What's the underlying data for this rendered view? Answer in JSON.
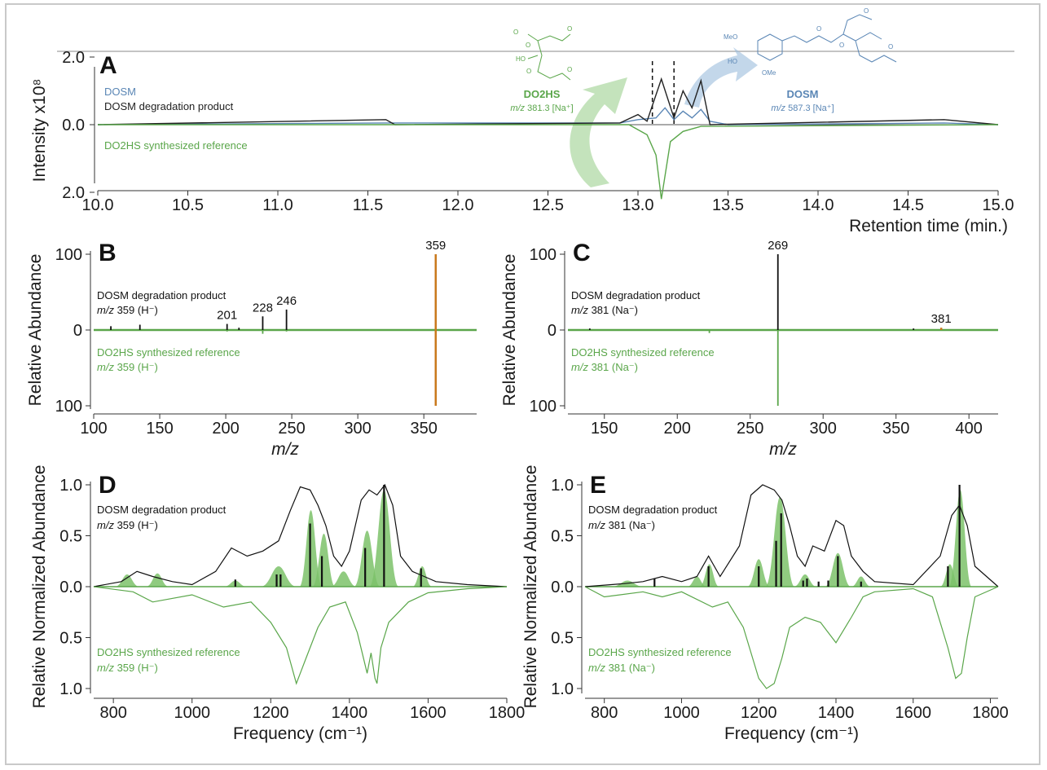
{
  "colors": {
    "dosm": "#5a86b5",
    "product": "#222222",
    "reference": "#5aa64a",
    "reference_fill": "#7cc26a",
    "highlight": "#c9791c"
  },
  "chart_data": [
    {
      "panel": "A",
      "type": "line",
      "xlabel": "Retention time (min.)",
      "ylabel": "Intensity x10⁸",
      "xlim": [
        10.0,
        15.0
      ],
      "ylim": [
        -2.3,
        2.6
      ],
      "xticks": [
        "10.0",
        "10.5",
        "11.0",
        "11.5",
        "12.0",
        "12.5",
        "13.0",
        "13.5",
        "14.0",
        "14.5",
        "15.0"
      ],
      "yticks": [
        "2.0",
        "0.0",
        "2.0"
      ],
      "series": [
        {
          "name": "DOSM",
          "x": [
            10.0,
            11.6,
            12.9,
            13.0,
            13.1,
            13.15,
            13.2,
            13.25,
            13.3,
            13.35,
            13.4,
            13.5,
            14.7,
            15.0
          ],
          "y": [
            0.0,
            0.05,
            0.05,
            0.15,
            0.2,
            0.5,
            0.15,
            0.4,
            0.2,
            0.45,
            0.1,
            0.0,
            0.05,
            0.0
          ]
        },
        {
          "name": "DOSM degradation product",
          "x": [
            10.0,
            11.6,
            11.65,
            12.9,
            13.0,
            13.05,
            13.13,
            13.2,
            13.25,
            13.3,
            13.35,
            13.4,
            14.7,
            15.0
          ],
          "y": [
            0.0,
            0.15,
            0.0,
            0.05,
            0.3,
            0.1,
            1.35,
            0.2,
            1.0,
            0.5,
            1.3,
            0.0,
            0.15,
            0.0
          ]
        },
        {
          "name": "DO2HS synthesized reference",
          "x": [
            10.0,
            12.95,
            13.05,
            13.1,
            13.13,
            13.18,
            13.25,
            13.35,
            15.0
          ],
          "y": [
            0.0,
            0.0,
            -0.3,
            -0.9,
            -2.2,
            -0.5,
            -0.2,
            -0.05,
            0.0
          ]
        }
      ],
      "legend": [
        "DOSM",
        "DOSM degradation product",
        "DO2HS synthesized reference"
      ],
      "annotations": {
        "left_compound": {
          "name": "DO2HS",
          "mz_prefix": "m/z",
          "mz_value": "381.3",
          "adduct": "[Na⁺]"
        },
        "right_compound": {
          "name": "DOSM",
          "mz_prefix": "m/z",
          "mz_value": "587.3",
          "adduct": "[Na⁺]"
        },
        "dashed_lines_x": [
          13.08,
          13.2
        ]
      }
    },
    {
      "panel": "B",
      "type": "bar",
      "xlabel": "m/z",
      "ylabel": "Relative Abundance",
      "xlim": [
        100,
        390
      ],
      "ylim": [
        -100,
        100
      ],
      "xticks": [
        "100",
        "150",
        "200",
        "250",
        "300",
        "350"
      ],
      "yticks": [
        "100",
        "0",
        "100"
      ],
      "upper_label": {
        "text": "DOSM degradation product",
        "mz_prefix": "m/z",
        "mz_value": "359 (H⁻)"
      },
      "lower_label": {
        "text": "DO2HS synthesized reference",
        "mz_prefix": "m/z",
        "mz_value": "359 (H⁻)"
      },
      "upper_peaks": [
        {
          "x": 113,
          "y": 5
        },
        {
          "x": 135,
          "y": 7
        },
        {
          "x": 201,
          "y": 8,
          "label": "201"
        },
        {
          "x": 210,
          "y": 3
        },
        {
          "x": 228,
          "y": 18,
          "label": "228"
        },
        {
          "x": 246,
          "y": 27,
          "label": "246"
        }
      ],
      "lower_peaks": [
        {
          "x": 201,
          "y": -2
        },
        {
          "x": 228,
          "y": -5
        },
        {
          "x": 246,
          "y": -2
        }
      ],
      "precursor": {
        "x": 359,
        "y": 100,
        "label": "359"
      }
    },
    {
      "panel": "C",
      "type": "bar",
      "xlabel": "m/z",
      "ylabel": "Relative Abundance",
      "xlim": [
        125,
        420
      ],
      "ylim": [
        -100,
        100
      ],
      "xticks": [
        "150",
        "200",
        "250",
        "300",
        "350",
        "400"
      ],
      "yticks": [
        "100",
        "0",
        "100"
      ],
      "upper_label": {
        "text": "DOSM degradation product",
        "mz_prefix": "m/z",
        "mz_value": "381 (Na⁻)"
      },
      "lower_label": {
        "text": "DO2HS synthesized reference",
        "mz_prefix": "m/z",
        "mz_value": "381 (Na⁻)"
      },
      "upper_peaks": [
        {
          "x": 140,
          "y": 2
        },
        {
          "x": 269,
          "y": 100,
          "label": "269"
        },
        {
          "x": 362,
          "y": 2
        }
      ],
      "lower_peaks": [
        {
          "x": 222,
          "y": -4
        },
        {
          "x": 269,
          "y": -100
        }
      ],
      "precursor": {
        "x": 381,
        "y": 3,
        "label": "381"
      }
    },
    {
      "panel": "D",
      "type": "line",
      "xlabel": "Frequency (cm⁻¹)",
      "ylabel": "Relative Normalized Abundance",
      "xlim": [
        750,
        1800
      ],
      "ylim": [
        -1.0,
        1.0
      ],
      "xticks": [
        "800",
        "1000",
        "1200",
        "1400",
        "1600",
        "1800"
      ],
      "yticks": [
        "1.0",
        "0.5",
        "0.0",
        "0.5",
        "1.0"
      ],
      "upper_label": {
        "text": "DOSM degradation product",
        "mz_prefix": "m/z",
        "mz_value": "359 (H⁻)"
      },
      "lower_label": {
        "text": "DO2HS synthesized reference",
        "mz_prefix": "m/z",
        "mz_value": "359 (H⁻)"
      },
      "experimental_upper": {
        "x": [
          750,
          820,
          860,
          900,
          950,
          1000,
          1060,
          1100,
          1140,
          1180,
          1220,
          1250,
          1275,
          1300,
          1320,
          1340,
          1360,
          1380,
          1400,
          1430,
          1450,
          1470,
          1490,
          1510,
          1530,
          1560,
          1590,
          1620,
          1700,
          1800
        ],
        "y": [
          0.0,
          0.05,
          0.15,
          0.1,
          0.05,
          0.02,
          0.15,
          0.38,
          0.3,
          0.35,
          0.45,
          0.75,
          0.98,
          0.95,
          0.8,
          0.6,
          0.3,
          0.2,
          0.35,
          0.85,
          0.95,
          0.9,
          1.0,
          0.8,
          0.3,
          0.15,
          0.1,
          0.05,
          0.02,
          0.0
        ]
      },
      "calc_peaks": [
        {
          "x": 1110,
          "y": 0.07
        },
        {
          "x": 1215,
          "y": 0.12
        },
        {
          "x": 1225,
          "y": 0.12
        },
        {
          "x": 1300,
          "y": 0.62
        },
        {
          "x": 1330,
          "y": 0.3
        },
        {
          "x": 1440,
          "y": 0.38
        },
        {
          "x": 1488,
          "y": 1.0
        },
        {
          "x": 1582,
          "y": 0.18
        }
      ],
      "calc_fill": [
        {
          "x": 835,
          "h": 0.12,
          "w": 15
        },
        {
          "x": 912,
          "h": 0.13,
          "w": 14
        },
        {
          "x": 1110,
          "h": 0.06,
          "w": 14
        },
        {
          "x": 1220,
          "h": 0.2,
          "w": 22
        },
        {
          "x": 1302,
          "h": 0.75,
          "w": 14
        },
        {
          "x": 1335,
          "h": 0.52,
          "w": 14
        },
        {
          "x": 1385,
          "h": 0.15,
          "w": 16
        },
        {
          "x": 1445,
          "h": 0.55,
          "w": 16
        },
        {
          "x": 1488,
          "h": 0.95,
          "w": 18
        },
        {
          "x": 1585,
          "h": 0.2,
          "w": 12
        }
      ],
      "experimental_lower": {
        "x": [
          750,
          850,
          900,
          1000,
          1080,
          1150,
          1200,
          1240,
          1265,
          1275,
          1290,
          1320,
          1350,
          1390,
          1420,
          1445,
          1455,
          1465,
          1470,
          1480,
          1500,
          1550,
          1600,
          1700,
          1800
        ],
        "y": [
          0.0,
          -0.05,
          -0.15,
          -0.08,
          -0.2,
          -0.15,
          -0.35,
          -0.6,
          -0.95,
          -0.85,
          -0.7,
          -0.4,
          -0.2,
          -0.15,
          -0.45,
          -0.85,
          -0.65,
          -0.9,
          -0.95,
          -0.6,
          -0.35,
          -0.15,
          -0.06,
          -0.02,
          0.0
        ]
      }
    },
    {
      "panel": "E",
      "type": "line",
      "xlabel": "Frequency (cm⁻¹)",
      "ylabel": "Relative Normalized Abundance",
      "xlim": [
        750,
        1820
      ],
      "ylim": [
        -1.0,
        1.0
      ],
      "xticks": [
        "800",
        "1000",
        "1200",
        "1400",
        "1600",
        "1800"
      ],
      "yticks": [
        "1.0",
        "0.5",
        "0.0",
        "0.5",
        "1.0"
      ],
      "upper_label": {
        "text": "DOSM degradation product",
        "mz_prefix": "m/z",
        "mz_value": "381 (Na⁻)"
      },
      "lower_label": {
        "text": "DO2HS synthesized reference",
        "mz_prefix": "m/z",
        "mz_value": "381 (Na⁻)"
      },
      "experimental_upper": {
        "x": [
          750,
          850,
          900,
          950,
          1000,
          1040,
          1070,
          1100,
          1150,
          1180,
          1210,
          1240,
          1260,
          1280,
          1300,
          1320,
          1340,
          1370,
          1400,
          1420,
          1440,
          1470,
          1500,
          1600,
          1670,
          1700,
          1720,
          1740,
          1760,
          1820
        ],
        "y": [
          0.0,
          0.03,
          0.05,
          0.1,
          0.05,
          0.1,
          0.3,
          0.1,
          0.4,
          0.9,
          1.0,
          0.95,
          0.85,
          0.6,
          0.3,
          0.2,
          0.4,
          0.35,
          0.65,
          0.6,
          0.3,
          0.15,
          0.05,
          0.02,
          0.3,
          0.7,
          0.8,
          0.6,
          0.2,
          0.0
        ]
      },
      "calc_peaks": [
        {
          "x": 930,
          "y": 0.08
        },
        {
          "x": 1070,
          "y": 0.2
        },
        {
          "x": 1200,
          "y": 0.2
        },
        {
          "x": 1245,
          "y": 0.45
        },
        {
          "x": 1258,
          "y": 0.72
        },
        {
          "x": 1315,
          "y": 0.06
        },
        {
          "x": 1325,
          "y": 0.08
        },
        {
          "x": 1355,
          "y": 0.05
        },
        {
          "x": 1380,
          "y": 0.06
        },
        {
          "x": 1405,
          "y": 0.3
        },
        {
          "x": 1465,
          "y": 0.05
        },
        {
          "x": 1690,
          "y": 0.2
        },
        {
          "x": 1720,
          "y": 1.0
        }
      ],
      "calc_fill": [
        {
          "x": 860,
          "h": 0.06,
          "w": 20
        },
        {
          "x": 1040,
          "h": 0.1,
          "w": 12
        },
        {
          "x": 1072,
          "h": 0.22,
          "w": 12
        },
        {
          "x": 1200,
          "h": 0.27,
          "w": 14
        },
        {
          "x": 1255,
          "h": 0.88,
          "w": 18
        },
        {
          "x": 1320,
          "h": 0.12,
          "w": 14
        },
        {
          "x": 1405,
          "h": 0.33,
          "w": 16
        },
        {
          "x": 1465,
          "h": 0.1,
          "w": 12
        },
        {
          "x": 1695,
          "h": 0.22,
          "w": 12
        },
        {
          "x": 1722,
          "h": 0.95,
          "w": 14
        }
      ],
      "experimental_lower": {
        "x": [
          750,
          800,
          900,
          950,
          1000,
          1080,
          1120,
          1160,
          1200,
          1220,
          1240,
          1260,
          1280,
          1320,
          1360,
          1400,
          1440,
          1470,
          1500,
          1600,
          1650,
          1690,
          1710,
          1725,
          1740,
          1760,
          1820
        ],
        "y": [
          0.0,
          -0.1,
          -0.05,
          -0.1,
          -0.05,
          -0.2,
          -0.15,
          -0.4,
          -0.9,
          -1.0,
          -0.95,
          -0.7,
          -0.4,
          -0.3,
          -0.35,
          -0.55,
          -0.3,
          -0.1,
          -0.05,
          -0.02,
          -0.1,
          -0.6,
          -0.9,
          -0.85,
          -0.5,
          -0.1,
          0.0
        ]
      }
    }
  ]
}
